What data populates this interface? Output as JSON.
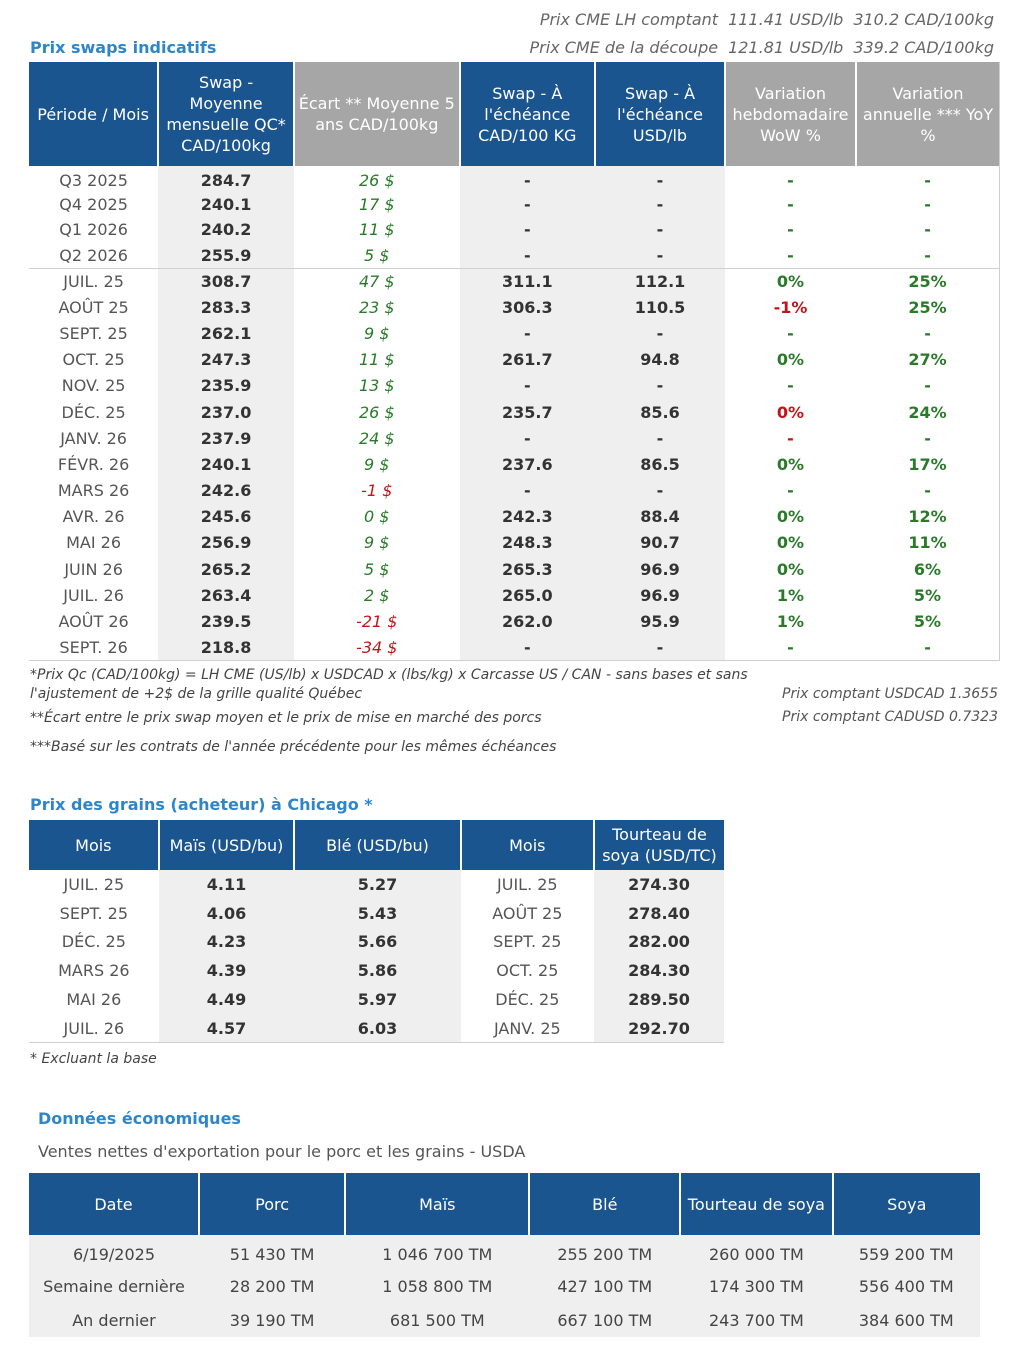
{
  "cme": {
    "lh": {
      "label": "Prix CME LH comptant",
      "usd": "111.41 USD/lb",
      "cad": "310.2 CAD/100kg"
    },
    "cut": {
      "label": "Prix CME de la découpe",
      "usd": "121.81 USD/lb",
      "cad": "339.2 CAD/100kg"
    }
  },
  "swaps": {
    "title": "Prix swaps indicatifs",
    "headers": [
      "Période / Mois",
      "Swap - Moyenne mensuelle QC* CAD/100kg",
      "Écart ** Moyenne 5 ans CAD/100kg",
      "Swap - À l'échéance CAD/100 KG",
      "Swap - À l'échéance USD/lb",
      "Variation hebdomadaire WoW %",
      "Variation annuelle *** YoY %"
    ],
    "quarters": [
      [
        "Q3 2025",
        "284.7",
        "26 $",
        "-",
        "-",
        "-",
        "-"
      ],
      [
        "Q4 2025",
        "240.1",
        "17 $",
        "-",
        "-",
        "-",
        "-"
      ],
      [
        "Q1 2026",
        "240.2",
        "11 $",
        "-",
        "-",
        "-",
        "-"
      ],
      [
        "Q2 2026",
        "255.9",
        "5 $",
        "-",
        "-",
        "-",
        "-"
      ]
    ],
    "months": [
      [
        "JUIL. 25",
        "308.7",
        "47 $",
        "311.1",
        "112.1",
        "0%",
        "25%"
      ],
      [
        "AOÛT 25",
        "283.3",
        "23 $",
        "306.3",
        "110.5",
        "-1%",
        "25%"
      ],
      [
        "SEPT. 25",
        "262.1",
        "9 $",
        "-",
        "-",
        "-",
        "-"
      ],
      [
        "OCT. 25",
        "247.3",
        "11 $",
        "261.7",
        "94.8",
        "0%",
        "27%"
      ],
      [
        "NOV. 25",
        "235.9",
        "13 $",
        "-",
        "-",
        "-",
        "-"
      ],
      [
        "DÉC. 25",
        "237.0",
        "26 $",
        "235.7",
        "85.6",
        "0%",
        "24%"
      ],
      [
        "JANV. 26",
        "237.9",
        "24 $",
        "-",
        "-",
        "-",
        "-"
      ],
      [
        "FÉVR. 26",
        "240.1",
        "9 $",
        "237.6",
        "86.5",
        "0%",
        "17%"
      ],
      [
        "MARS 26",
        "242.6",
        "-1 $",
        "-",
        "-",
        "-",
        "-"
      ],
      [
        "AVR. 26",
        "245.6",
        "0 $",
        "242.3",
        "88.4",
        "0%",
        "12%"
      ],
      [
        "MAI 26",
        "256.9",
        "9 $",
        "248.3",
        "90.7",
        "0%",
        "11%"
      ],
      [
        "JUIN 26",
        "265.2",
        "5 $",
        "265.3",
        "96.9",
        "0%",
        "6%"
      ],
      [
        "JUIL. 26",
        "263.4",
        "2 $",
        "265.0",
        "96.9",
        "1%",
        "5%"
      ],
      [
        "AOÛT 26",
        "239.5",
        "-21 $",
        "262.0",
        "95.9",
        "1%",
        "5%"
      ],
      [
        "SEPT. 26",
        "218.8",
        "-34 $",
        "-",
        "-",
        "-",
        "-"
      ]
    ],
    "month_wow_colors": [
      "green",
      "red",
      "green",
      "green",
      "green",
      "red",
      "red",
      "green",
      "green",
      "green",
      "green",
      "green",
      "green",
      "green",
      "green"
    ],
    "notes": {
      "n1": "*Prix Qc (CAD/100kg) = LH CME (US/lb) x USDCAD x (lbs/kg) x Carcasse US / CAN - sans bases et sans l'ajustement de +2$ de la grille qualité Québec",
      "n2": "**Écart entre le prix swap moyen et le prix de mise en marché des porcs",
      "n3": "***Basé sur les contrats de l'année précédente pour les mêmes échéances",
      "usdcad": "Prix comptant USDCAD 1.3655",
      "cadusd": "Prix comptant CADUSD 0.7323"
    }
  },
  "grains": {
    "title": "Prix des grains (acheteur) à Chicago *",
    "headers": [
      "Mois",
      "Maïs (USD/bu)",
      "Blé (USD/bu)",
      "Mois",
      "Tourteau de soya (USD/TC)"
    ],
    "rows": [
      [
        "JUIL. 25",
        "4.11",
        "5.27",
        "JUIL. 25",
        "274.30"
      ],
      [
        "SEPT. 25",
        "4.06",
        "5.43",
        "AOÛT 25",
        "278.40"
      ],
      [
        "DÉC. 25",
        "4.23",
        "5.66",
        "SEPT. 25",
        "282.00"
      ],
      [
        "MARS 26",
        "4.39",
        "5.86",
        "OCT. 25",
        "284.30"
      ],
      [
        "MAI 26",
        "4.49",
        "5.97",
        "DÉC. 25",
        "289.50"
      ],
      [
        "JUIL. 26",
        "4.57",
        "6.03",
        "JANV. 25",
        "292.70"
      ]
    ],
    "note": "* Excluant la base"
  },
  "eco": {
    "title": "Données économiques",
    "subtitle": "Ventes nettes d'exportation pour le porc et les grains - USDA",
    "headers": [
      "Date",
      "Porc",
      "Maïs",
      "Blé",
      "Tourteau de soya",
      "Soya"
    ],
    "rows": [
      [
        "6/19/2025",
        "51 430 TM",
        "1 046 700 TM",
        "255 200 TM",
        "260 000 TM",
        "559 200 TM"
      ],
      [
        "Semaine dernière",
        "28 200 TM",
        "1 058 800 TM",
        "427 100 TM",
        "174 300 TM",
        "556 400 TM"
      ],
      [
        "An dernier",
        "39 190 TM",
        "681 500 TM",
        "667 100 TM",
        "243 700 TM",
        "384 600 TM"
      ]
    ]
  }
}
